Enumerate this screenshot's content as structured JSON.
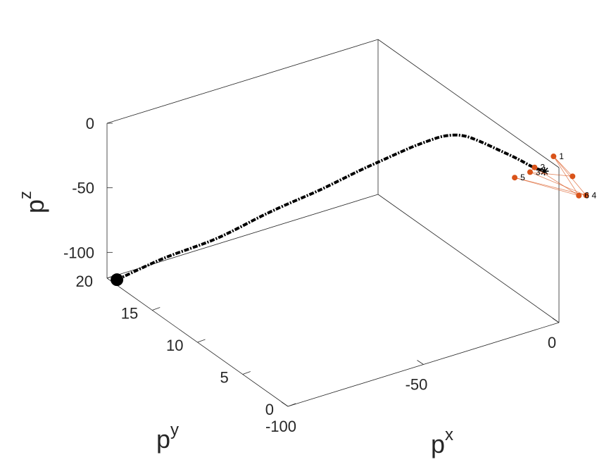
{
  "chart_data": {
    "type": "line3d",
    "axes": {
      "x": {
        "label": "p",
        "label_sup": "x",
        "ticks": [
          -100,
          -50,
          0
        ],
        "tick_labels": [
          "-100",
          "-50",
          "0"
        ],
        "lim": [
          -100,
          0
        ]
      },
      "y": {
        "label": "p",
        "label_sup": "y",
        "ticks": [
          0,
          5,
          10,
          15,
          20
        ],
        "tick_labels": [
          "0",
          "5",
          "10",
          "15",
          "20"
        ],
        "lim": [
          0,
          20
        ]
      },
      "z": {
        "label": "p",
        "label_sup": "z",
        "ticks": [
          -100,
          -50,
          0
        ],
        "tick_labels": [
          "-100",
          "-50",
          "0"
        ],
        "lim": [
          -120,
          0
        ]
      }
    },
    "trajectory": {
      "style": "dashed",
      "color": "#000000",
      "start_marker": "filled-circle",
      "points": [
        {
          "x": -98,
          "y": 19.5,
          "z": -120
        },
        {
          "x": -93,
          "y": 18.5,
          "z": -110
        },
        {
          "x": -87,
          "y": 17.5,
          "z": -100
        },
        {
          "x": -81,
          "y": 16.5,
          "z": -92
        },
        {
          "x": -76,
          "y": 15.5,
          "z": -84
        },
        {
          "x": -71,
          "y": 14.5,
          "z": -74
        },
        {
          "x": -66,
          "y": 13.5,
          "z": -63
        },
        {
          "x": -61,
          "y": 12.5,
          "z": -53
        },
        {
          "x": -57,
          "y": 11.5,
          "z": -44
        },
        {
          "x": -53,
          "y": 10.5,
          "z": -35
        },
        {
          "x": -49,
          "y": 9.5,
          "z": -25
        },
        {
          "x": -45,
          "y": 8.5,
          "z": -15
        },
        {
          "x": -42,
          "y": 7.5,
          "z": -6
        },
        {
          "x": -39,
          "y": 6.5,
          "z": 3
        },
        {
          "x": -36,
          "y": 5.5,
          "z": 12
        },
        {
          "x": -33,
          "y": 4.5,
          "z": 20
        },
        {
          "x": -30,
          "y": 3.7,
          "z": 26
        },
        {
          "x": -26,
          "y": 2.9,
          "z": 28
        },
        {
          "x": -22,
          "y": 2.2,
          "z": 24
        },
        {
          "x": -17,
          "y": 1.5,
          "z": 17
        },
        {
          "x": -12,
          "y": 0.9,
          "z": 10
        },
        {
          "x": -8,
          "y": 0.4,
          "z": 3
        },
        {
          "x": -5,
          "y": 0.1,
          "z": 0
        }
      ]
    },
    "end_marker": {
      "symbol": "asterisk",
      "x": -5,
      "y": 0.1,
      "z": 0
    },
    "points": {
      "color": "#d95319",
      "items": [
        {
          "label": "1",
          "x": -2,
          "y": 0,
          "z": 10
        },
        {
          "label": "2",
          "x": -9,
          "y": 0,
          "z": 6
        },
        {
          "label": "3",
          "x": -10,
          "y": 0.2,
          "z": 2
        },
        {
          "label": "4",
          "x": 10,
          "y": 0,
          "z": -28
        },
        {
          "label": "5",
          "x": -15,
          "y": 0.4,
          "z": 0
        },
        {
          "label": "6",
          "x": 9,
          "y": 0.5,
          "z": -30
        },
        {
          "label": "",
          "x": 5,
          "y": 0,
          "z": -10
        }
      ],
      "edges": [
        [
          0,
          3
        ],
        [
          3,
          4
        ],
        [
          4,
          5
        ],
        [
          5,
          1
        ],
        [
          1,
          2
        ],
        [
          2,
          6
        ],
        [
          6,
          0
        ],
        [
          0,
          5
        ],
        [
          3,
          2
        ]
      ]
    },
    "grid": false,
    "box": true
  }
}
